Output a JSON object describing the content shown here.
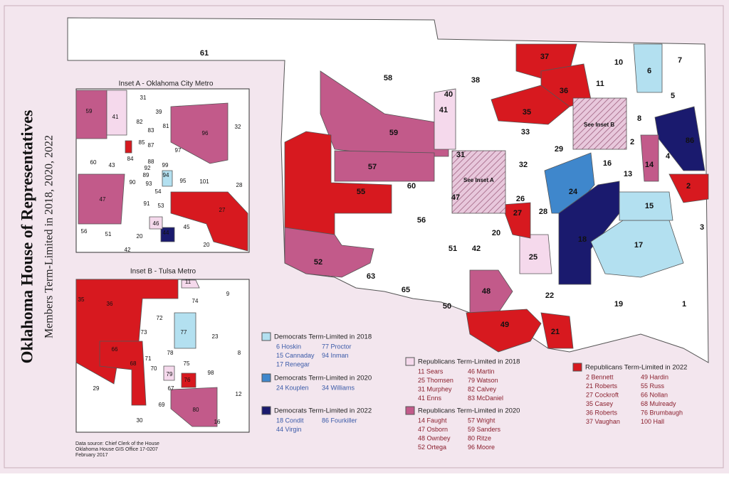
{
  "title": "Oklahoma House of Representatives",
  "subtitle": "Members Term-Limited in 2018, 2020, 2022",
  "main_map": {
    "notes": [
      "See Inset A",
      "See Inset B"
    ],
    "labels": [
      "61",
      "58",
      "38",
      "37",
      "10",
      "6",
      "7",
      "11",
      "36",
      "5",
      "40",
      "41",
      "35",
      "8",
      "33",
      "59",
      "29",
      "2",
      "4",
      "86",
      "31",
      "32",
      "16",
      "14",
      "13",
      "57",
      "60",
      "55",
      "24",
      "2",
      "26",
      "15",
      "28",
      "27",
      "56",
      "20",
      "3",
      "18",
      "17",
      "51",
      "42",
      "52",
      "25",
      "63",
      "65",
      "48",
      "22",
      "50",
      "19",
      "1",
      "49",
      "21",
      "47"
    ]
  },
  "inset_a": {
    "title": "Inset A - Oklahoma City Metro",
    "labels": [
      "31",
      "59",
      "41",
      "82",
      "39",
      "83",
      "81",
      "96",
      "32",
      "85",
      "84",
      "87",
      "97",
      "60",
      "43",
      "88",
      "99",
      "92",
      "89",
      "94",
      "93",
      "95",
      "101",
      "90",
      "28",
      "54",
      "91",
      "53",
      "27",
      "47",
      "46",
      "44",
      "45",
      "56",
      "51",
      "20",
      "42",
      "20"
    ]
  },
  "inset_b": {
    "title": "Inset B - Tulsa Metro",
    "labels": [
      "11",
      "35",
      "36",
      "74",
      "9",
      "72",
      "73",
      "77",
      "23",
      "66",
      "68",
      "78",
      "71",
      "75",
      "70",
      "8",
      "79",
      "67",
      "76",
      "98",
      "29",
      "69",
      "80",
      "12",
      "30",
      "16"
    ]
  },
  "legend": [
    {
      "title": "Democrats Term-Limited in 2018",
      "color": "#b3e0f0",
      "members": [
        "6 Hoskin",
        "15 Cannaday",
        "17 Renegar",
        "77 Proctor",
        "94 Inman"
      ]
    },
    {
      "title": "Democrats Term-Limited in 2020",
      "color": "#3f87cc",
      "members": [
        "24 Kouplen",
        "34 Williams"
      ]
    },
    {
      "title": "Democrats Term-Limited in 2022",
      "color": "#1a1a6e",
      "members": [
        "18 Condit",
        "44 Virgin",
        "86 Fourkiller"
      ]
    },
    {
      "title": "Republicans Term-Limited in 2018",
      "color": "#f5d9ec",
      "members": [
        "11 Sears",
        "25 Thomsen",
        "31 Murphey",
        "41 Enns",
        "46 Martin",
        "79 Watson",
        "82 Calvey",
        "83 McDaniel"
      ]
    },
    {
      "title": "Republicans Term-Limited in 2020",
      "color": "#c25a8a",
      "members": [
        "14 Faught",
        "47 Osborn",
        "48 Ownbey",
        "52 Ortega",
        "57 Wright",
        "59 Sanders",
        "80 Ritze",
        "96 Moore"
      ]
    },
    {
      "title": "Republicans Term-Limited in 2022",
      "color": "#d7191f",
      "members": [
        "2 Bennett",
        "21 Roberts",
        "27 Cockroft",
        "35 Casey",
        "36 Roberts",
        "37 Vaughan",
        "49 Hardin",
        "55 Russ",
        "66 Nollan",
        "68 Mulready",
        "76 Brumbaugh",
        "100 Hall"
      ]
    }
  ],
  "source": [
    "Data source: Chief Clerk of the House",
    "Oklahoma House GIS Office 17-0207",
    "February 2017"
  ]
}
